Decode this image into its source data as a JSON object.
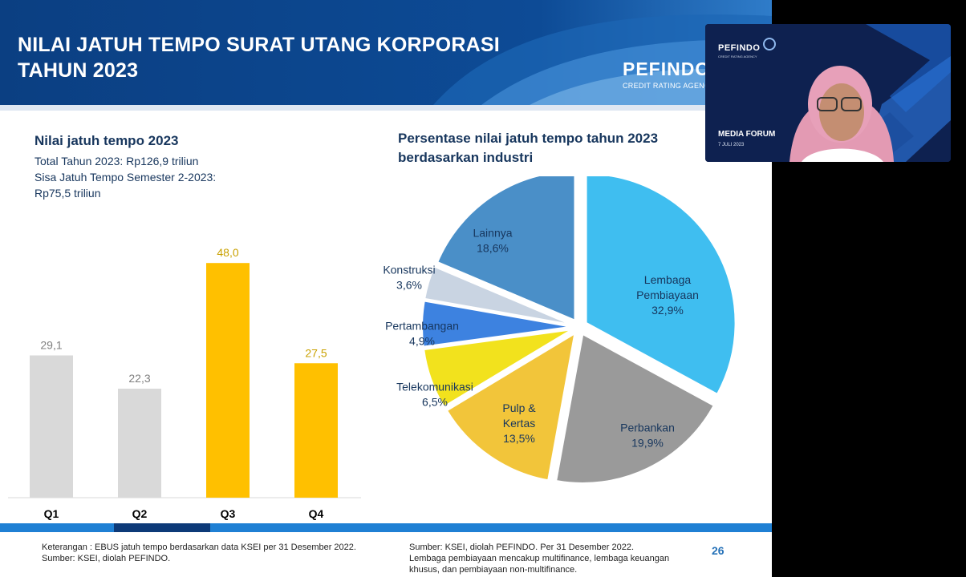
{
  "slide": {
    "title_line1": "NILAI JATUH TEMPO SURAT UTANG KORPORASI",
    "title_line2": "TAHUN 2023",
    "brand": "PEFINDO",
    "brand_sub": "CREDIT RATING AGENCY",
    "page_number": "26"
  },
  "left_panel": {
    "title": "Nilai jatuh tempo 2023",
    "line1": "Total Tahun 2023: Rp126,9 triliun",
    "line2": "Sisa Jatuh Tempo Semester 2-2023:",
    "line3": "Rp75,5 triliun"
  },
  "pie_panel": {
    "title_line1": "Persentase nilai jatuh tempo tahun 2023",
    "title_line2": "berdasarkan industri"
  },
  "footer": {
    "left_line1": "Keterangan : EBUS jatuh tempo berdasarkan data KSEI per 31 Desember 2022.",
    "left_line2": "Sumber: KSEI, diolah PEFINDO.",
    "right_line1": "Sumber: KSEI, diolah PEFINDO. Per 31 Desember 2022.",
    "right_line2": "Lembaga pembiayaan mencakup multifinance, lembaga keuangan",
    "right_line3": "khusus, dan pembiayaan non-multifinance."
  },
  "webcam": {
    "brand": "PEFINDO",
    "brand_sub": "CREDIT RATING AGENCY",
    "event": "MEDIA FORUM",
    "date": "7 JULI 2023"
  },
  "colors": {
    "banner_dark": "#0a3a7a",
    "bar_past": "#d9d9d9",
    "bar_future": "#ffc000",
    "label_past": "#7f7f7f",
    "label_future": "#c9a100"
  },
  "chart_data": [
    {
      "type": "bar",
      "categories": [
        "Q1",
        "Q2",
        "Q3",
        "Q4"
      ],
      "values": [
        29.1,
        22.3,
        48.0,
        27.5
      ],
      "value_labels": [
        "29,1",
        "22,3",
        "48,0",
        "27,5"
      ],
      "bar_colors": [
        "#d9d9d9",
        "#d9d9d9",
        "#ffc000",
        "#ffc000"
      ],
      "label_colors": [
        "#7f7f7f",
        "#7f7f7f",
        "#c9a100",
        "#c9a100"
      ],
      "ylim": [
        0,
        50
      ]
    },
    {
      "type": "pie",
      "slices": [
        {
          "label": "Lembaga Pembiayaan",
          "lines": [
            "Lembaga",
            "Pembiayaan",
            "32,9%"
          ],
          "value": 32.9,
          "color": "#3fbef0"
        },
        {
          "label": "Perbankan",
          "lines": [
            "Perbankan",
            "19,9%"
          ],
          "value": 19.9,
          "color": "#9a9a9a"
        },
        {
          "label": "Pulp & Kertas",
          "lines": [
            "Pulp &",
            "Kertas",
            "13,5%"
          ],
          "value": 13.5,
          "color": "#f2c53a"
        },
        {
          "label": "Telekomunikasi",
          "lines": [
            "Telekomunikasi",
            "6,5%"
          ],
          "value": 6.5,
          "color": "#f2e21d"
        },
        {
          "label": "Pertambangan",
          "lines": [
            "Pertambangan",
            "4,9%"
          ],
          "value": 4.9,
          "color": "#3d82e0"
        },
        {
          "label": "Konstruksi",
          "lines": [
            "Konstruksi",
            "3,6%"
          ],
          "value": 3.6,
          "color": "#c9d4e2"
        },
        {
          "label": "Lainnya",
          "lines": [
            "Lainnya",
            "18,6%"
          ],
          "value": 18.6,
          "color": "#4a8fc8"
        }
      ]
    }
  ]
}
